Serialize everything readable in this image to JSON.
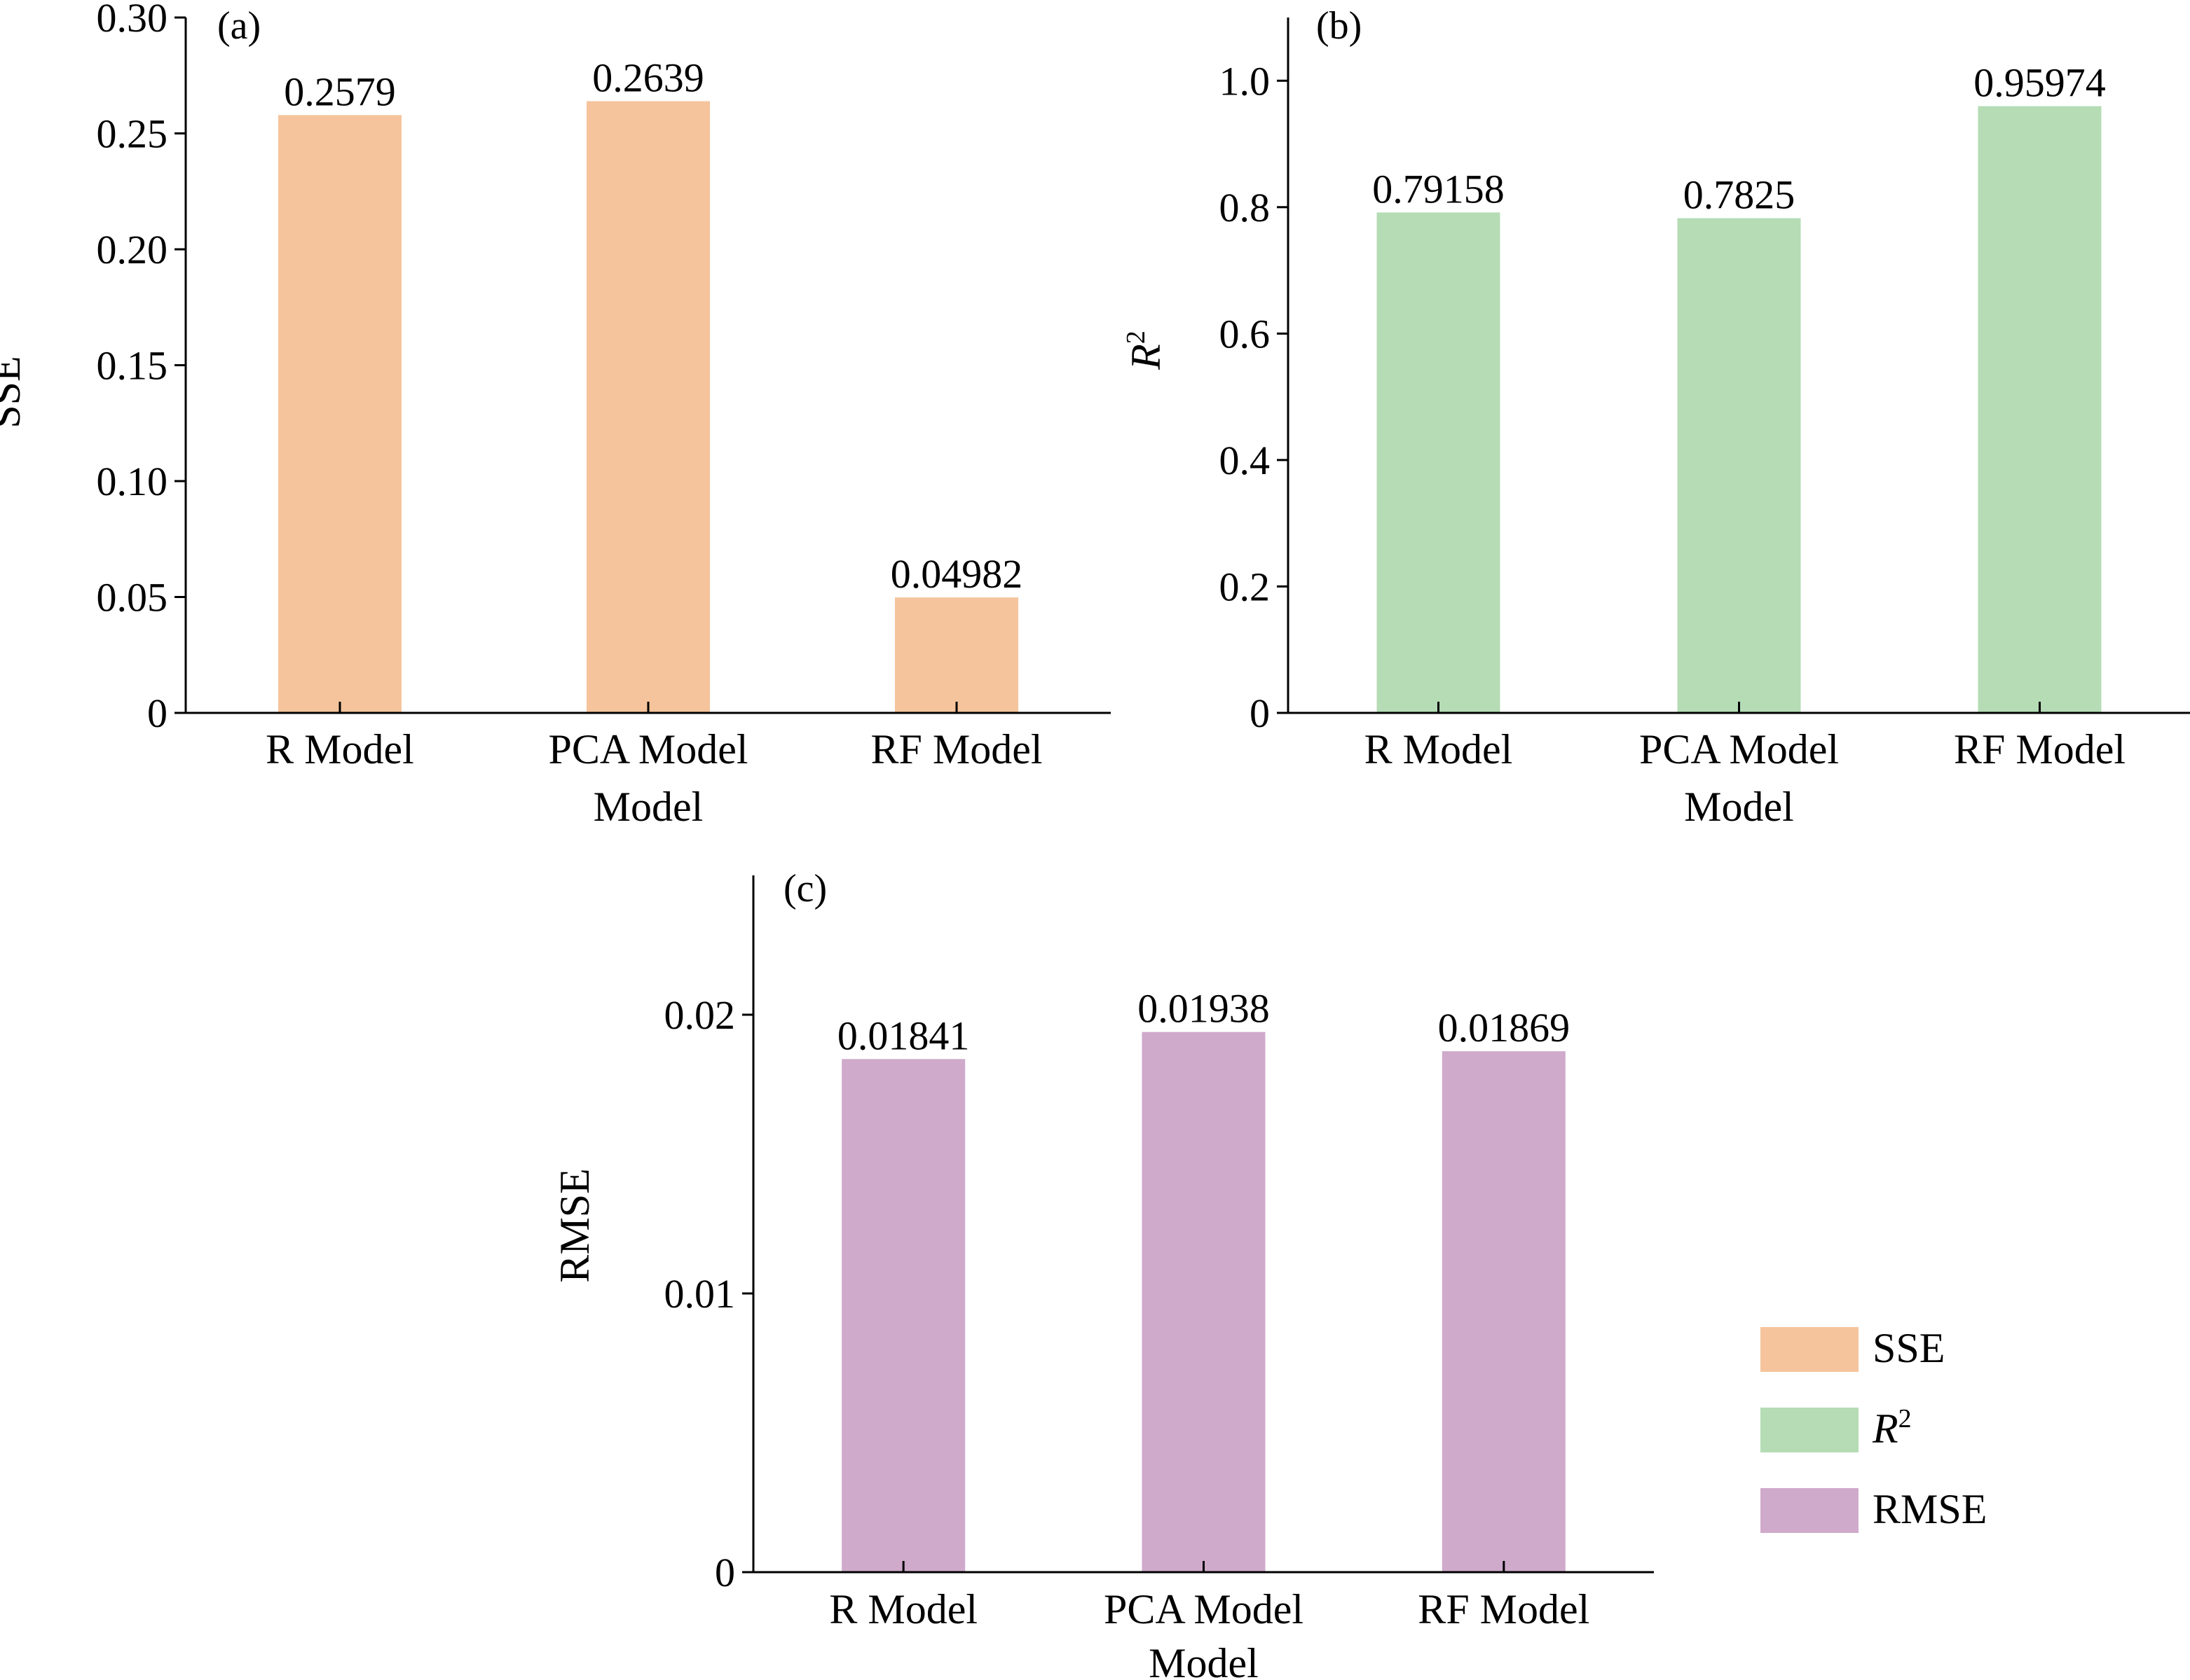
{
  "chart_data": [
    {
      "type": "bar",
      "panel_tag": "(a)",
      "categories": [
        "R Model",
        "PCA Model",
        "RF Model"
      ],
      "xlabel": "Model",
      "ylabel": "SSE",
      "ylim": [
        0,
        0.3
      ],
      "yticks": [
        0,
        0.05,
        0.1,
        0.15,
        0.2,
        0.25,
        0.3
      ],
      "ytick_labels": [
        "0",
        "0.05",
        "0.10",
        "0.15",
        "0.20",
        "0.25",
        "0.30"
      ],
      "values": [
        0.2579,
        0.2639,
        0.04982
      ],
      "value_labels": [
        "0.2579",
        "0.2639",
        "0.04982"
      ],
      "color": "#f5c49c"
    },
    {
      "type": "bar",
      "panel_tag": "(b)",
      "categories": [
        "R Model",
        "PCA Model",
        "RF Model"
      ],
      "xlabel": "Model",
      "ylabel": "R",
      "ylabel_sup": "2",
      "ylim": [
        0,
        1.1
      ],
      "yticks": [
        0,
        0.2,
        0.4,
        0.6,
        0.8,
        1.0
      ],
      "ytick_labels": [
        "0",
        "0.2",
        "0.4",
        "0.6",
        "0.8",
        "1.0"
      ],
      "values": [
        0.79158,
        0.7825,
        0.95974
      ],
      "value_labels": [
        "0.79158",
        "0.7825",
        "0.95974"
      ],
      "color": "#b5dcb5"
    },
    {
      "type": "bar",
      "panel_tag": "(c)",
      "categories": [
        "R Model",
        "PCA Model",
        "RF Model"
      ],
      "xlabel": "Model",
      "ylabel": "RMSE",
      "ylim": [
        0,
        0.025
      ],
      "yticks": [
        0,
        0.01,
        0.02
      ],
      "ytick_labels": [
        "0",
        "0.01",
        "0.02"
      ],
      "values": [
        0.01841,
        0.01938,
        0.01869
      ],
      "value_labels": [
        "0.01841",
        "0.01938",
        "0.01869"
      ],
      "color": "#cfaacb"
    }
  ],
  "legend": {
    "placement": "right of panel (c)",
    "items": [
      {
        "label": "SSE",
        "sup": "",
        "color": "#f5c49c"
      },
      {
        "label": "R",
        "sup": "2",
        "color": "#b5dcb5"
      },
      {
        "label": "RMSE",
        "sup": "",
        "color": "#cfaacb"
      }
    ]
  }
}
